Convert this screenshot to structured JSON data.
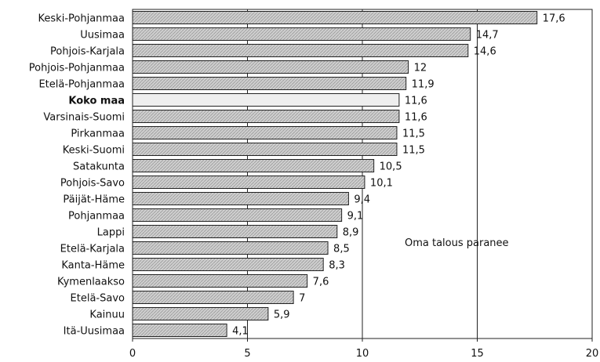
{
  "chart_data": {
    "type": "bar",
    "orientation": "horizontal",
    "categories": [
      "Keski-Pohjanmaa",
      "Uusimaa",
      "Pohjois-Karjala",
      "Pohjois-Pohjanmaa",
      "Etelä-Pohjanmaa",
      "Koko maa",
      "Varsinais-Suomi",
      "Pirkanmaa",
      "Keski-Suomi",
      "Satakunta",
      "Pohjois-Savo",
      "Päijät-Häme",
      "Pohjanmaa",
      "Lappi",
      "Etelä-Karjala",
      "Kanta-Häme",
      "Kymenlaakso",
      "Etelä-Savo",
      "Kainuu",
      "Itä-Uusimaa"
    ],
    "values": [
      17.6,
      14.7,
      14.6,
      12,
      11.9,
      11.6,
      11.6,
      11.5,
      11.5,
      10.5,
      10.1,
      9.4,
      9.1,
      8.9,
      8.5,
      8.3,
      7.6,
      7,
      5.9,
      4.1
    ],
    "value_labels": [
      "17,6",
      "14,7",
      "14,6",
      "12",
      "11,9",
      "11,6",
      "11,6",
      "11,5",
      "11,5",
      "10,5",
      "10,1",
      "9,4",
      "9,1",
      "8,9",
      "8,5",
      "8,3",
      "7,6",
      "7",
      "5,9",
      "4,1"
    ],
    "highlight_category": "Koko maa",
    "xlim": [
      0,
      20
    ],
    "xticks": [
      0,
      5,
      10,
      15,
      20
    ],
    "xtick_labels": [
      "0",
      "5",
      "10",
      "15",
      "20"
    ],
    "grid": "vertical",
    "annotation": "Oma talous paranee",
    "title": "",
    "xlabel": "",
    "ylabel": "",
    "colors": {
      "bar_fill": "#cfcfcf",
      "bar_hatch": "#9a9a9a",
      "bar_stroke": "#222222",
      "highlight_fill": "#eeeeee",
      "grid": "#222222",
      "text": "#111111"
    }
  }
}
